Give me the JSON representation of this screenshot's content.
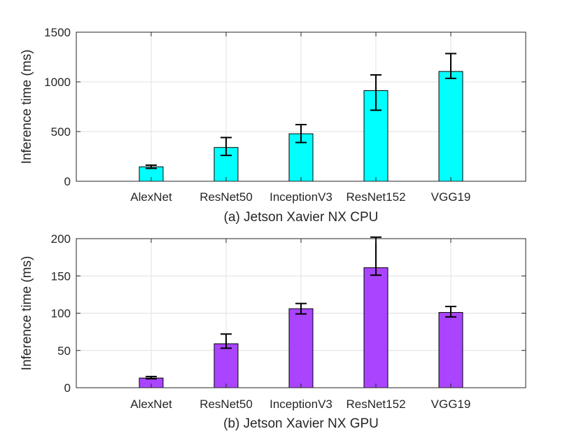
{
  "chart_data": [
    {
      "type": "bar",
      "caption": "(a) Jetson Xavier NX CPU",
      "xlabel": "",
      "ylabel": "Inference time (ms)",
      "categories": [
        "AlexNet",
        "ResNet50",
        "InceptionV3",
        "ResNet152",
        "VGG19"
      ],
      "values": [
        145,
        340,
        478,
        912,
        1105
      ],
      "error_low": [
        130,
        260,
        390,
        715,
        1035
      ],
      "error_high": [
        162,
        440,
        570,
        1070,
        1285
      ],
      "ylim": [
        0,
        1500
      ],
      "yticks": [
        0,
        500,
        1000,
        1500
      ],
      "grid": true,
      "legend": "none",
      "bar_color": "#00ffff"
    },
    {
      "type": "bar",
      "caption": "(b) Jetson Xavier NX GPU",
      "xlabel": "",
      "ylabel": "Inference time (ms)",
      "categories": [
        "AlexNet",
        "ResNet50",
        "InceptionV3",
        "ResNet152",
        "VGG19"
      ],
      "values": [
        13,
        59,
        106,
        161,
        101
      ],
      "error_low": [
        12,
        53,
        99,
        151,
        95
      ],
      "error_high": [
        15,
        72,
        113,
        202,
        109
      ],
      "ylim": [
        0,
        200
      ],
      "yticks": [
        0,
        50,
        100,
        150,
        200
      ],
      "grid": true,
      "legend": "none",
      "bar_color": "#aa44ff"
    }
  ]
}
